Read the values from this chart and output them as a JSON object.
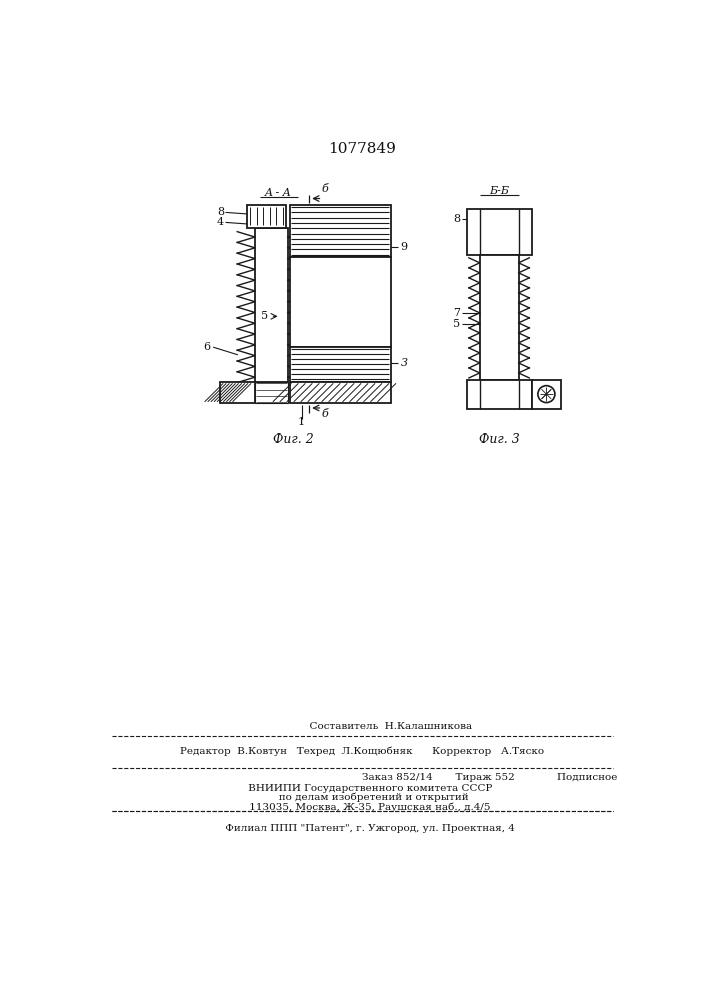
{
  "patent_number": "1077849",
  "fig2_label": "Фиг. 2",
  "fig3_label": "Фиг. 3",
  "section_aa": "A - A",
  "section_bb": "Б-Б",
  "background_color": "#ffffff",
  "line_color": "#1a1a1a",
  "text_color": "#111111",
  "footer_line1": "                  Составитель  Н.Калашникова",
  "footer_line2": "Редактор  В.Ковтун   Техред  Л.Кощюбняк      Корректор   А.Тяско",
  "footer_line3": "Заказ 852/14       Тираж 552             Подписное",
  "footer_line4": "     ВНИИПИ Государственного комитета СССР",
  "footer_line5": "       по делам изобретений и открытий",
  "footer_line6": "     113035, Москва, Ж-35, Раушская наб., д.4/5",
  "footer_line7": "     Филиал ППП \"Патент\", г. Ужгород, ул. Проектная, 4"
}
